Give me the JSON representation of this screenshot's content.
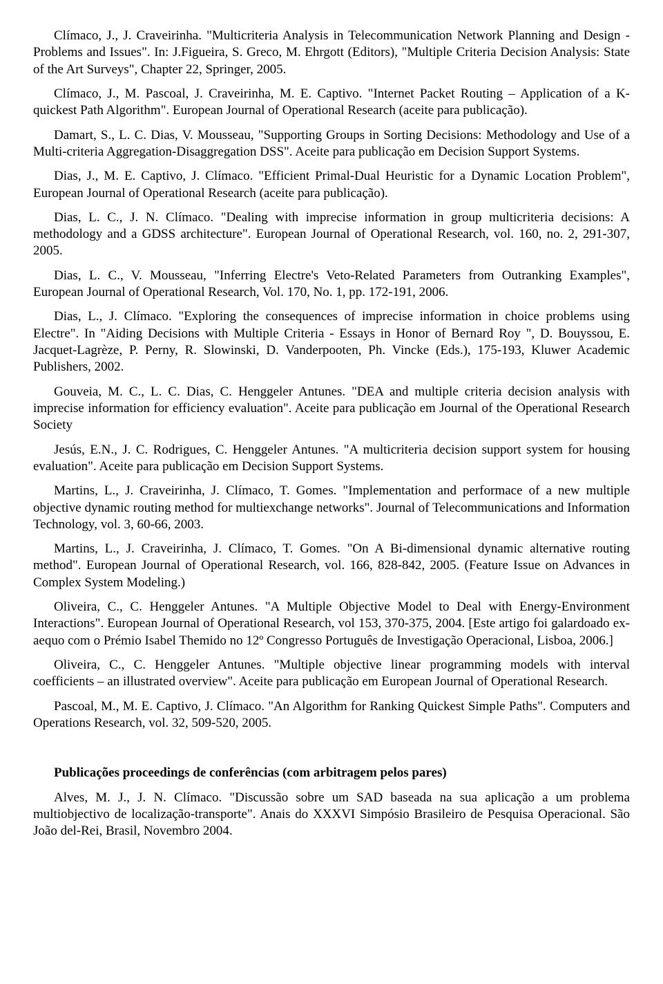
{
  "refs": [
    "Clímaco, J., J. Craveirinha. \"Multicriteria Analysis in Telecommunication Network Planning and Design - Problems and Issues\". In: J.Figueira, S. Greco, M. Ehrgott (Editors), \"Multiple Criteria Decision Analysis: State of the Art Surveys\", Chapter 22, Springer, 2005.",
    "Clímaco, J., M. Pascoal, J. Craveirinha, M. E. Captivo. \"Internet Packet Routing – Application of a K-quickest Path Algorithm\". European Journal of Operational Research (aceite para publicação).",
    "Damart, S., L. C. Dias, V. Mousseau, \"Supporting Groups in Sorting Decisions: Methodology and Use of a Multi-criteria Aggregation-Disaggregation DSS\". Aceite para publicação em Decision Support Systems.",
    "Dias, J., M. E. Captivo, J. Clímaco. \"Efficient Primal-Dual Heuristic for a Dynamic Location Problem\", European Journal of Operational Research (aceite para publicação).",
    "Dias, L. C., J. N. Clímaco. \"Dealing with imprecise information in group multicriteria decisions: A methodology and a GDSS architecture\". European Journal of Operational Research, vol. 160, no. 2, 291-307, 2005.",
    "Dias, L. C., V. Mousseau, \"Inferring Electre's Veto-Related Parameters from Outranking Examples\", European Journal of Operational Research, Vol. 170, No. 1, pp. 172-191, 2006.",
    "Dias, L., J. Clímaco. \"Exploring the consequences of imprecise information in choice problems using Electre\". In \"Aiding Decisions with Multiple Criteria - Essays in Honor of Bernard Roy \", D. Bouyssou, E. Jacquet-Lagrèze, P. Perny, R. Slowinski, D. Vanderpooten, Ph. Vincke (Eds.), 175-193, Kluwer Academic Publishers, 2002.",
    "Gouveia, M. C., L. C. Dias, C. Henggeler Antunes. \"DEA and multiple criteria decision analysis with imprecise information for efficiency evaluation\". Aceite para publicação em Journal of the Operational Research Society",
    "Jesús, E.N., J. C. Rodrigues, C. Henggeler Antunes. \"A multicriteria decision support system for housing evaluation\". Aceite para publicação em Decision Support Systems.",
    "Martins, L., J. Craveirinha, J. Clímaco, T. Gomes. \"Implementation and performace of a new multiple objective dynamic routing method for multiexchange networks\". Journal of Telecommunications and Information Technology, vol. 3, 60-66, 2003.",
    "Martins, L., J. Craveirinha, J. Clímaco, T. Gomes. \"On A Bi-dimensional dynamic alternative routing method\". European Journal of Operational Research, vol. 166, 828-842, 2005. (Feature Issue on Advances in Complex System Modeling.)",
    "Oliveira, C., C. Henggeler Antunes. \"A Multiple Objective Model to Deal with Energy-Environment Interactions\". European Journal of Operational Research, vol 153, 370-375, 2004. [Este artigo foi galardoado ex-aequo com o Prémio Isabel Themido no 12º Congresso Português de Investigação Operacional, Lisboa, 2006.]",
    "Oliveira, C., C. Henggeler Antunes. \"Multiple objective linear programming models with interval coefficients – an illustrated overview\". Aceite para publicação em European Journal of Operational Research.",
    "Pascoal, M., M. E. Captivo, J. Clímaco. \"An Algorithm for Ranking Quickest Simple Paths\". Computers and Operations Research, vol. 32, 509-520, 2005."
  ],
  "section_heading": "Publicações proceedings de conferências (com arbitragem pelos pares)",
  "refs2": [
    "Alves, M. J., J. N. Clímaco. \"Discussão sobre um SAD baseada na sua aplicação a um problema multiobjectivo de localização-transporte\". Anais do XXXVI Simpósio Brasileiro de Pesquisa Operacional. São João del-Rei, Brasil, Novembro 2004."
  ]
}
